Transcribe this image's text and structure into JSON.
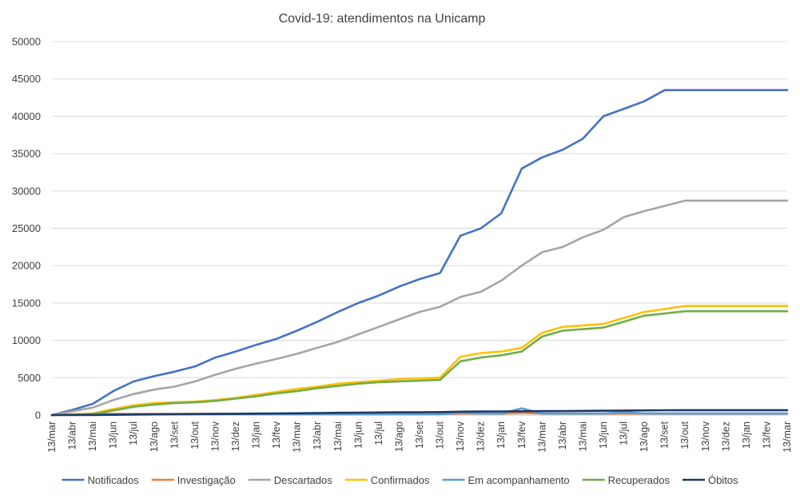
{
  "chart_data": {
    "type": "line",
    "title": "Covid-19: atendimentos  na Unicamp",
    "xlabel": "",
    "ylabel": "",
    "ylim": [
      0,
      50000
    ],
    "yticks": [
      0,
      5000,
      10000,
      15000,
      20000,
      25000,
      30000,
      35000,
      40000,
      45000,
      50000
    ],
    "grid": "horizontal",
    "legend_position": "bottom",
    "x_tick_labels": [
      "13/mar",
      "13/abr",
      "13/mai",
      "13/jun",
      "13/jul",
      "13/ago",
      "13/set",
      "13/out",
      "13/nov",
      "13/dez",
      "13/jan",
      "13/fev",
      "13/mar",
      "13/abr",
      "13/mai",
      "13/jun",
      "13/jul",
      "13/ago",
      "13/set",
      "13/out",
      "13/nov",
      "13/dez",
      "13/jan",
      "13/fev",
      "13/mar",
      "13/abr",
      "13/mai",
      "13/jun",
      "13/jul",
      "13/ago",
      "13/set",
      "13/out",
      "13/nov",
      "13/dez",
      "13/jan",
      "13/fev",
      "13/mar"
    ],
    "x": [
      "13/mar",
      "13/abr",
      "13/mai",
      "13/jun",
      "13/jul",
      "13/ago",
      "13/set",
      "13/out",
      "13/nov",
      "13/dez",
      "13/jan",
      "13/fev",
      "13/mar",
      "13/abr",
      "13/mai",
      "13/jun",
      "13/jul",
      "13/ago",
      "13/set",
      "13/out",
      "13/nov",
      "13/dez",
      "13/jan",
      "13/fev",
      "13/mar",
      "13/abr",
      "13/mai",
      "13/jun",
      "13/jul",
      "13/ago",
      "13/set",
      "13/out",
      "13/nov",
      "13/dez",
      "13/jan",
      "13/fev",
      "13/mar"
    ],
    "series": [
      {
        "name": "Notificados",
        "color": "#4472C4",
        "values": [
          0,
          700,
          1500,
          3200,
          4500,
          5200,
          5800,
          6500,
          7700,
          8500,
          9400,
          10200,
          11300,
          12500,
          13800,
          15000,
          16000,
          17200,
          18200,
          19000,
          24000,
          25000,
          27000,
          33000,
          34500,
          35500,
          37000,
          40000,
          41000,
          42000,
          43500,
          43500,
          43500,
          43500,
          43500,
          43500,
          43500
        ]
      },
      {
        "name": "Investigação",
        "color": "#ED7D31",
        "values": [
          0,
          100,
          150,
          150,
          150,
          150,
          150,
          150,
          150,
          150,
          150,
          150,
          150,
          150,
          150,
          150,
          150,
          150,
          150,
          150,
          200,
          200,
          200,
          300,
          200,
          200,
          200,
          200,
          200,
          200,
          200,
          200,
          200,
          200,
          200,
          200,
          200
        ]
      },
      {
        "name": "Descartados",
        "color": "#A5A5A5",
        "values": [
          0,
          500,
          1000,
          2000,
          2800,
          3400,
          3800,
          4500,
          5400,
          6200,
          6900,
          7500,
          8200,
          9000,
          9800,
          10800,
          11800,
          12800,
          13800,
          14500,
          15800,
          16500,
          18000,
          20000,
          21800,
          22500,
          23800,
          24800,
          26500,
          27300,
          28000,
          28700,
          28700,
          28700,
          28700,
          28700,
          28700
        ]
      },
      {
        "name": "Confirmados",
        "color": "#FFC000",
        "values": [
          0,
          100,
          200,
          800,
          1300,
          1600,
          1700,
          1800,
          2000,
          2300,
          2700,
          3100,
          3500,
          3800,
          4200,
          4400,
          4600,
          4800,
          4900,
          5000,
          7800,
          8300,
          8500,
          9000,
          11000,
          11800,
          12000,
          12200,
          13000,
          13800,
          14200,
          14600,
          14600,
          14600,
          14600,
          14600,
          14600
        ]
      },
      {
        "name": "Em acompanhamento",
        "color": "#5B9BD5",
        "values": [
          0,
          60,
          80,
          100,
          100,
          100,
          100,
          100,
          100,
          100,
          100,
          100,
          100,
          100,
          100,
          100,
          100,
          100,
          100,
          100,
          300,
          200,
          200,
          900,
          200,
          200,
          200,
          200,
          400,
          200,
          200,
          200,
          200,
          200,
          200,
          200,
          200
        ]
      },
      {
        "name": "Recuperados",
        "color": "#70AD47",
        "values": [
          0,
          50,
          150,
          600,
          1100,
          1400,
          1600,
          1700,
          1900,
          2200,
          2500,
          2900,
          3200,
          3600,
          3900,
          4200,
          4400,
          4500,
          4600,
          4700,
          7200,
          7700,
          8000,
          8500,
          10500,
          11300,
          11500,
          11700,
          12500,
          13300,
          13600,
          13900,
          13900,
          13900,
          13900,
          13900,
          13900
        ]
      },
      {
        "name": "Óbitos",
        "color": "#1F3864",
        "values": [
          0,
          5,
          10,
          30,
          60,
          90,
          110,
          130,
          150,
          170,
          190,
          210,
          240,
          270,
          300,
          320,
          340,
          360,
          380,
          400,
          450,
          470,
          480,
          500,
          520,
          540,
          560,
          580,
          600,
          620,
          640,
          650,
          650,
          650,
          650,
          650,
          650
        ]
      }
    ]
  }
}
